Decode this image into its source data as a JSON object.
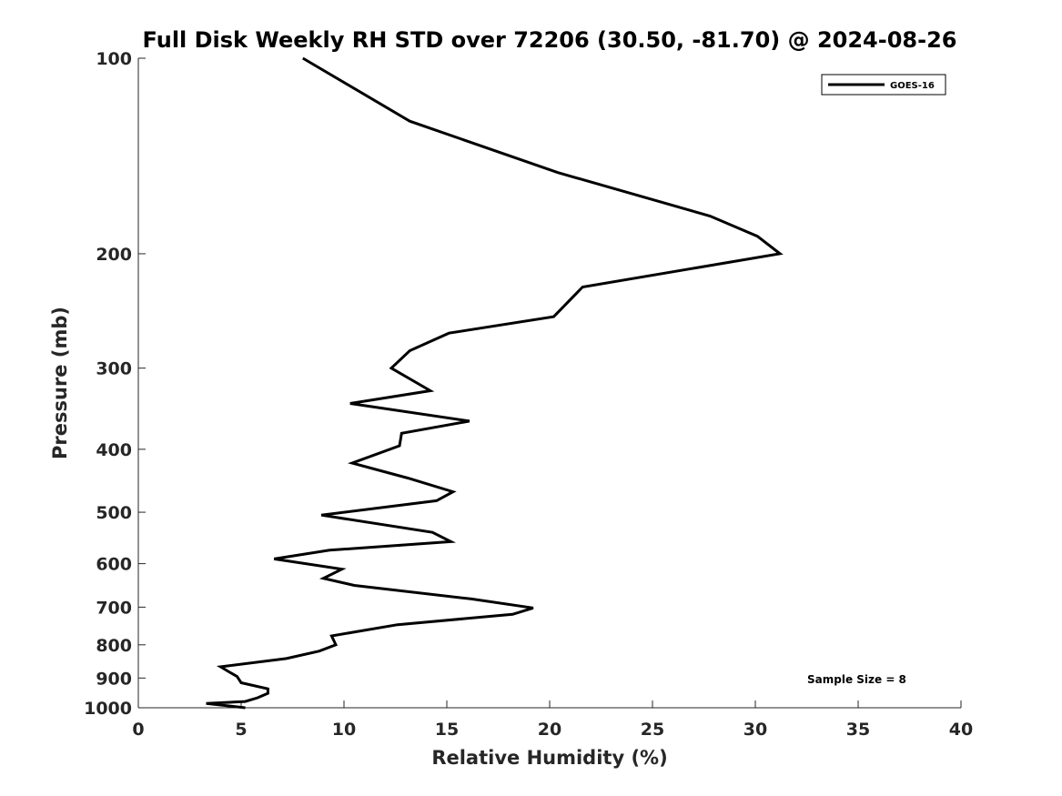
{
  "chart_data": {
    "type": "line",
    "title": "Full Disk Weekly RH STD over 72206 (30.50, -81.70) @ 2024-08-26",
    "xlabel": "Relative Humidity (%)",
    "ylabel": "Pressure (mb)",
    "xlim": [
      0,
      40
    ],
    "ylim": [
      100,
      1000
    ],
    "y_scale": "log",
    "y_reversed": true,
    "grid": false,
    "x_ticks": [
      "0",
      "5",
      "10",
      "15",
      "20",
      "25",
      "30",
      "35",
      "40"
    ],
    "y_ticks": [
      "100",
      "200",
      "300",
      "400",
      "500",
      "600",
      "700",
      "800",
      "900",
      "1000"
    ],
    "legend": {
      "entries": [
        "GOES-16"
      ],
      "position": "top-right"
    },
    "annotation": "Sample Size = 8",
    "series": [
      {
        "name": "GOES-16",
        "color": "#000000",
        "points": [
          [
            8.0,
            100
          ],
          [
            13.2,
            125
          ],
          [
            20.4,
            150
          ],
          [
            27.8,
            175
          ],
          [
            30.1,
            188
          ],
          [
            31.2,
            200
          ],
          [
            21.6,
            225
          ],
          [
            20.2,
            250
          ],
          [
            15.1,
            265
          ],
          [
            13.2,
            282
          ],
          [
            12.3,
            300
          ],
          [
            14.2,
            325
          ],
          [
            10.3,
            340
          ],
          [
            16.1,
            362
          ],
          [
            12.8,
            378
          ],
          [
            12.7,
            395
          ],
          [
            10.4,
            420
          ],
          [
            13.1,
            443
          ],
          [
            15.3,
            465
          ],
          [
            14.5,
            480
          ],
          [
            8.9,
            505
          ],
          [
            14.3,
            537
          ],
          [
            15.2,
            555
          ],
          [
            9.3,
            572
          ],
          [
            6.6,
            590
          ],
          [
            9.9,
            612
          ],
          [
            9.0,
            632
          ],
          [
            10.5,
            648
          ],
          [
            16.2,
            680
          ],
          [
            19.2,
            702
          ],
          [
            18.2,
            718
          ],
          [
            12.6,
            745
          ],
          [
            9.4,
            775
          ],
          [
            9.6,
            800
          ],
          [
            8.8,
            818
          ],
          [
            7.2,
            840
          ],
          [
            4.0,
            865
          ],
          [
            4.4,
            880
          ],
          [
            4.8,
            895
          ],
          [
            5.0,
            915
          ],
          [
            6.3,
            935
          ],
          [
            6.3,
            950
          ],
          [
            5.8,
            965
          ],
          [
            5.2,
            978
          ],
          [
            3.3,
            985
          ],
          [
            5.2,
            1000
          ]
        ]
      }
    ]
  }
}
